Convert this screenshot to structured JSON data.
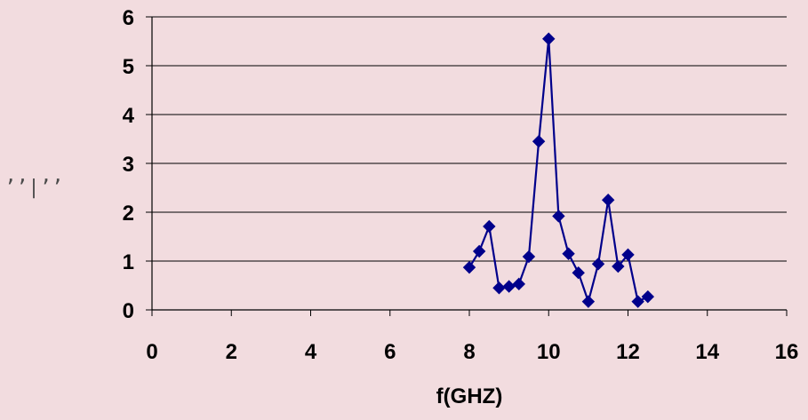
{
  "chart_data": {
    "type": "line",
    "title": "",
    "xlabel": "f(GHZ)",
    "ylabel": "ʼʼ|ʼʼ",
    "xlim": [
      0,
      16
    ],
    "ylim": [
      0,
      6
    ],
    "xticks": [
      "0",
      "2",
      "4",
      "6",
      "8",
      "10",
      "12",
      "14",
      "16"
    ],
    "yticks": [
      "0",
      "1",
      "2",
      "3",
      "4",
      "5",
      "6"
    ],
    "grid": "horizontal",
    "legend": "none",
    "series": [
      {
        "color": "#00008b",
        "marker": "diamond",
        "x": [
          8.0,
          8.25,
          8.5,
          8.75,
          9.0,
          9.25,
          9.5,
          9.75,
          10.0,
          10.25,
          10.5,
          10.75,
          11.0,
          11.25,
          11.5,
          11.75,
          12.0,
          12.25,
          12.5
        ],
        "y": [
          0.87,
          1.2,
          1.71,
          0.45,
          0.48,
          0.53,
          1.09,
          3.45,
          5.55,
          1.92,
          1.15,
          0.76,
          0.17,
          0.94,
          2.25,
          0.89,
          1.13,
          0.17,
          0.27
        ]
      }
    ]
  }
}
